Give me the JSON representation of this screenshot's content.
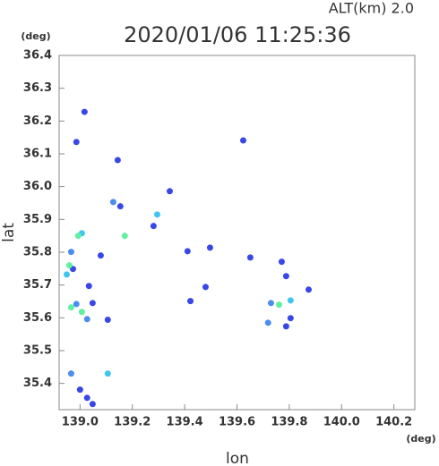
{
  "chart_data": {
    "type": "scatter",
    "header": "ALT(km)  2.0",
    "title": "2020/01/06 11:25:36",
    "y_unit": "(deg)",
    "x_unit": "(deg)",
    "xlabel": "lon",
    "ylabel": "lat",
    "xlim": [
      138.92,
      140.28
    ],
    "ylim": [
      35.32,
      36.4
    ],
    "xticks": [
      {
        "value": 139.0,
        "label": "139.0"
      },
      139.2,
      139.4,
      139.6,
      139.8,
      {
        "value": 140.0,
        "label": "140.0"
      },
      140.2
    ],
    "yticks": [
      35.4,
      35.5,
      35.6,
      35.7,
      35.8,
      35.9,
      {
        "value": 36.0,
        "label": "36.0"
      },
      36.1,
      36.2,
      36.3,
      36.4
    ],
    "series": [
      {
        "color": "#3848e8",
        "x": [
          139.017,
          138.986,
          139.144,
          139.154,
          139.343,
          139.281,
          139.079,
          138.973,
          139.034,
          139.048,
          139.106,
          139.497,
          139.48,
          139.422,
          139.624,
          139.411,
          139.651,
          139.771,
          139.788,
          139.874,
          139.805,
          139.788,
          139.0,
          139.027,
          139.048
        ],
        "y": [
          36.228,
          36.136,
          36.081,
          35.94,
          35.986,
          35.88,
          35.79,
          35.749,
          35.697,
          35.645,
          35.594,
          35.814,
          35.694,
          35.651,
          36.141,
          35.803,
          35.784,
          35.771,
          35.727,
          35.686,
          35.599,
          35.574,
          35.381,
          35.356,
          35.337
        ]
      },
      {
        "color": "#4a8cf0",
        "x": [
          139.127,
          138.966,
          138.986,
          139.027,
          139.73,
          139.719,
          138.966
        ],
        "y": [
          35.953,
          35.801,
          35.642,
          35.596,
          35.645,
          35.585,
          35.43
        ]
      },
      {
        "color": "#40c4f0",
        "x": [
          139.295,
          139.007,
          138.949,
          139.106,
          139.805
        ],
        "y": [
          35.915,
          35.858,
          35.732,
          35.43,
          35.653
        ]
      },
      {
        "color": "#60f0a0",
        "x": [
          139.171,
          138.993,
          138.959,
          138.966,
          139.007,
          139.761
        ],
        "y": [
          35.85,
          35.85,
          35.76,
          35.632,
          35.618,
          35.64
        ]
      }
    ]
  }
}
